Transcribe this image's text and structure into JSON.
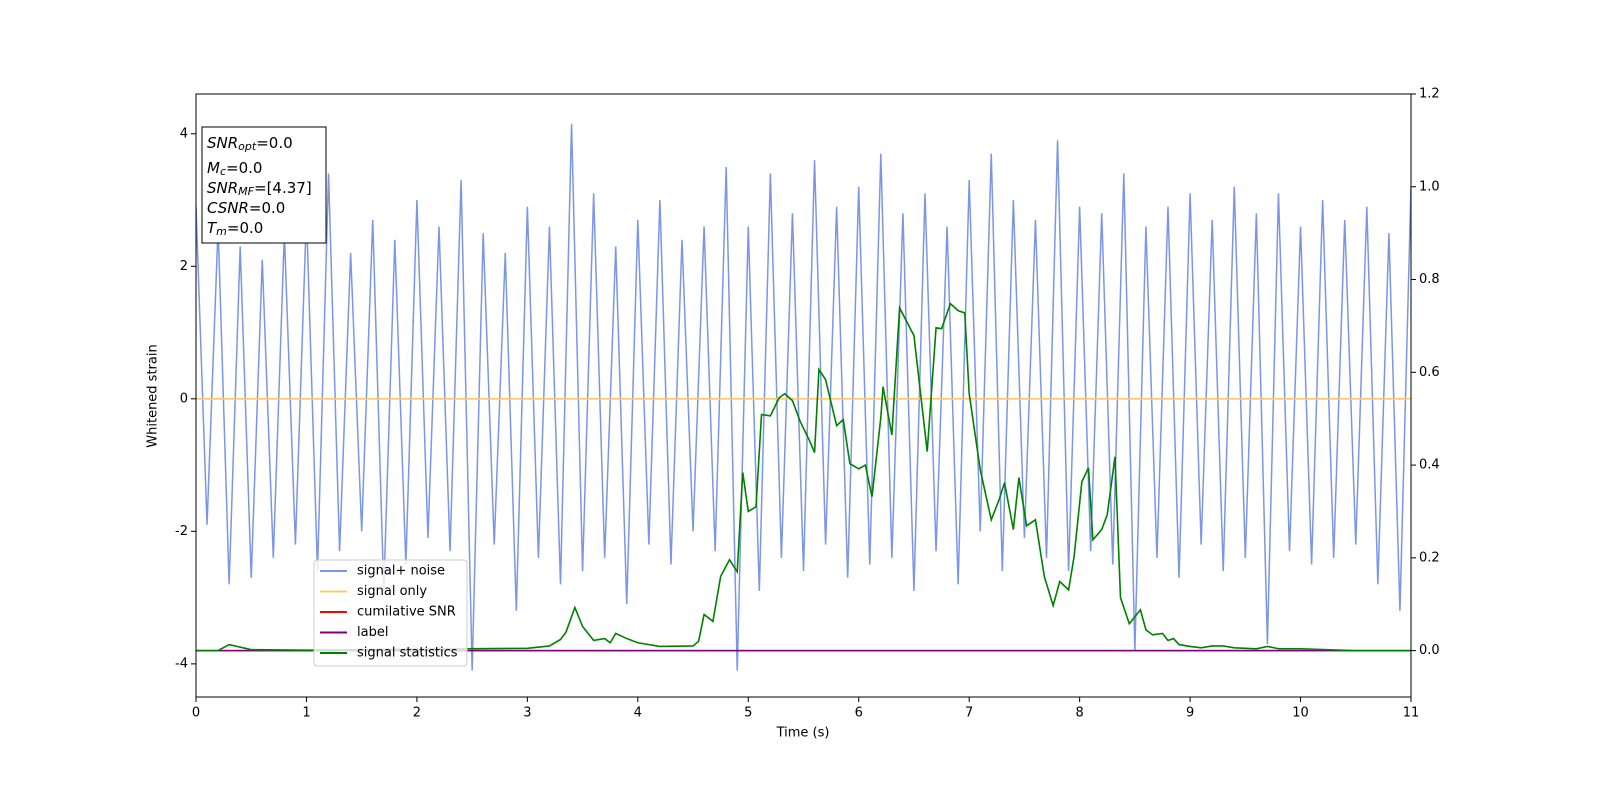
{
  "chart_data": {
    "type": "line",
    "xlabel": "Time (s)",
    "ylabel": "Whitened strain",
    "xlim": [
      0,
      11
    ],
    "xticks": [
      0,
      1,
      2,
      3,
      4,
      5,
      6,
      7,
      8,
      9,
      10,
      11
    ],
    "ylim": [
      -4.5,
      4.6
    ],
    "yticks": [
      -4,
      -2,
      0,
      2,
      4
    ],
    "y2lim": [
      -0.1,
      1.2
    ],
    "y2ticks": [
      {
        "value": 0,
        "label": "0.0"
      },
      0.2,
      0.4,
      0.6,
      0.8,
      {
        "value": 1,
        "label": "1.0"
      },
      1.2
    ],
    "annotation": [
      {
        "main": "SNR",
        "sub": "opt",
        "rest": "=0.0"
      },
      {
        "main": "M",
        "sub": "c",
        "rest": "=0.0"
      },
      {
        "main": "SNR",
        "sub": "MF",
        "rest": "=[4.37]"
      },
      {
        "main": "CSNR",
        "sub": "",
        "rest": "=0.0"
      },
      {
        "main": "T",
        "sub": "m",
        "rest": "=0.0"
      }
    ],
    "series": [
      {
        "name": "signal+ noise",
        "color": "#7b96e8",
        "axis": "y",
        "x": [
          0,
          0.1,
          0.2,
          0.3,
          0.4,
          0.5,
          0.6,
          0.7,
          0.8,
          0.9,
          1,
          1.1,
          1.2,
          1.3,
          1.4,
          1.5,
          1.6,
          1.7,
          1.8,
          1.9,
          2,
          2.1,
          2.2,
          2.3,
          2.4,
          2.5,
          2.6,
          2.7,
          2.8,
          2.9,
          3,
          3.1,
          3.2,
          3.3,
          3.4,
          3.5,
          3.6,
          3.7,
          3.8,
          3.9,
          4,
          4.1,
          4.2,
          4.3,
          4.4,
          4.5,
          4.6,
          4.7,
          4.8,
          4.9,
          5,
          5.1,
          5.2,
          5.3,
          5.4,
          5.5,
          5.6,
          5.7,
          5.8,
          5.9,
          6,
          6.1,
          6.2,
          6.3,
          6.4,
          6.5,
          6.6,
          6.7,
          6.8,
          6.9,
          7,
          7.1,
          7.2,
          7.3,
          7.4,
          7.5,
          7.6,
          7.7,
          7.8,
          7.9,
          8,
          8.1,
          8.2,
          8.3,
          8.4,
          8.5,
          8.6,
          8.7,
          8.8,
          8.9,
          9,
          9.1,
          9.2,
          9.3,
          9.4,
          9.5,
          9.6,
          9.7,
          9.8,
          9.9,
          10,
          10.1,
          10.2,
          10.3,
          10.4,
          10.5,
          10.6,
          10.7,
          10.8,
          10.9,
          11
        ],
        "values": [
          2.9,
          -1.9,
          2.6,
          -2.8,
          2.3,
          -2.7,
          2.1,
          -2.4,
          2.5,
          -2.2,
          2.8,
          -2.6,
          3.4,
          -2.3,
          2.2,
          -2.0,
          2.7,
          -2.9,
          2.4,
          -2.5,
          3.0,
          -2.1,
          2.6,
          -2.3,
          3.3,
          -4.1,
          2.5,
          -2.2,
          2.2,
          -3.2,
          2.9,
          -2.4,
          2.6,
          -2.8,
          4.15,
          -2.6,
          3.1,
          -2.4,
          2.3,
          -3.1,
          2.7,
          -2.2,
          3.0,
          -2.5,
          2.4,
          -2.0,
          2.6,
          -2.3,
          3.5,
          -4.1,
          2.6,
          -2.9,
          3.4,
          -2.4,
          2.8,
          -2.6,
          3.6,
          -2.2,
          2.9,
          -2.7,
          3.2,
          -2.5,
          3.7,
          -2.4,
          2.8,
          -2.9,
          3.1,
          -2.3,
          2.6,
          -2.8,
          3.3,
          -2.0,
          3.7,
          -2.6,
          3.0,
          -2.1,
          2.7,
          -2.4,
          3.9,
          -2.6,
          2.9,
          -2.3,
          2.8,
          -2.5,
          3.4,
          -3.8,
          2.6,
          -2.4,
          2.9,
          -2.7,
          3.1,
          -2.2,
          2.7,
          -2.6,
          3.2,
          -2.4,
          2.8,
          -3.7,
          3.1,
          -2.3,
          2.6,
          -2.5,
          3.0,
          -2.4,
          2.7,
          -2.2,
          2.9,
          -2.8,
          2.5,
          -3.2,
          3.2
        ]
      },
      {
        "name": "signal only",
        "color": "#ffc870",
        "axis": "y",
        "x": [
          0,
          11
        ],
        "values": [
          0,
          0
        ]
      },
      {
        "name": "cumilative SNR",
        "color": "#ff0000",
        "axis": "y2",
        "x": [
          0,
          11
        ],
        "values": [
          0,
          0
        ]
      },
      {
        "name": "label",
        "color": "#800080",
        "axis": "y2",
        "x": [
          0,
          11
        ],
        "values": [
          0,
          0
        ]
      },
      {
        "name": "signal statistics",
        "color": "#008000",
        "axis": "y2",
        "x": [
          0,
          0.2,
          0.3,
          0.5,
          1,
          2,
          3,
          3.2,
          3.3,
          3.35,
          3.43,
          3.5,
          3.6,
          3.7,
          3.75,
          3.8,
          3.9,
          4,
          4.2,
          4.5,
          4.55,
          4.6,
          4.68,
          4.75,
          4.83,
          4.9,
          4.95,
          5,
          5.07,
          5.12,
          5.2,
          5.28,
          5.33,
          5.4,
          5.47,
          5.55,
          5.6,
          5.64,
          5.7,
          5.8,
          5.86,
          5.92,
          6,
          6.06,
          6.12,
          6.2,
          6.22,
          6.3,
          6.37,
          6.5,
          6.62,
          6.7,
          6.75,
          6.83,
          6.9,
          6.96,
          7,
          7.1,
          7.2,
          7.27,
          7.32,
          7.4,
          7.45,
          7.52,
          7.6,
          7.68,
          7.76,
          7.82,
          7.9,
          7.95,
          8.02,
          8.08,
          8.12,
          8.2,
          8.25,
          8.32,
          8.37,
          8.45,
          8.55,
          8.6,
          8.66,
          8.75,
          8.8,
          8.85,
          8.9,
          9,
          9.1,
          9.2,
          9.3,
          9.4,
          9.6,
          9.7,
          9.8,
          10,
          10.5,
          11
        ],
        "values": [
          0,
          0,
          0.013,
          0.002,
          0.001,
          0.003,
          0.005,
          0.01,
          0.024,
          0.04,
          0.093,
          0.052,
          0.022,
          0.026,
          0.017,
          0.037,
          0.026,
          0.017,
          0.009,
          0.01,
          0.02,
          0.078,
          0.063,
          0.16,
          0.196,
          0.17,
          0.384,
          0.3,
          0.31,
          0.509,
          0.506,
          0.545,
          0.554,
          0.539,
          0.494,
          0.455,
          0.427,
          0.606,
          0.584,
          0.485,
          0.498,
          0.403,
          0.392,
          0.4,
          0.332,
          0.502,
          0.569,
          0.465,
          0.739,
          0.679,
          0.429,
          0.696,
          0.694,
          0.748,
          0.733,
          0.728,
          0.554,
          0.39,
          0.282,
          0.325,
          0.362,
          0.261,
          0.373,
          0.269,
          0.282,
          0.16,
          0.097,
          0.149,
          0.131,
          0.203,
          0.364,
          0.394,
          0.239,
          0.261,
          0.293,
          0.418,
          0.114,
          0.058,
          0.088,
          0.045,
          0.034,
          0.037,
          0.022,
          0.026,
          0.013,
          0.009,
          0.006,
          0.01,
          0.01,
          0.006,
          0.004,
          0.009,
          0.004,
          0.004,
          0,
          0
        ]
      }
    ]
  }
}
